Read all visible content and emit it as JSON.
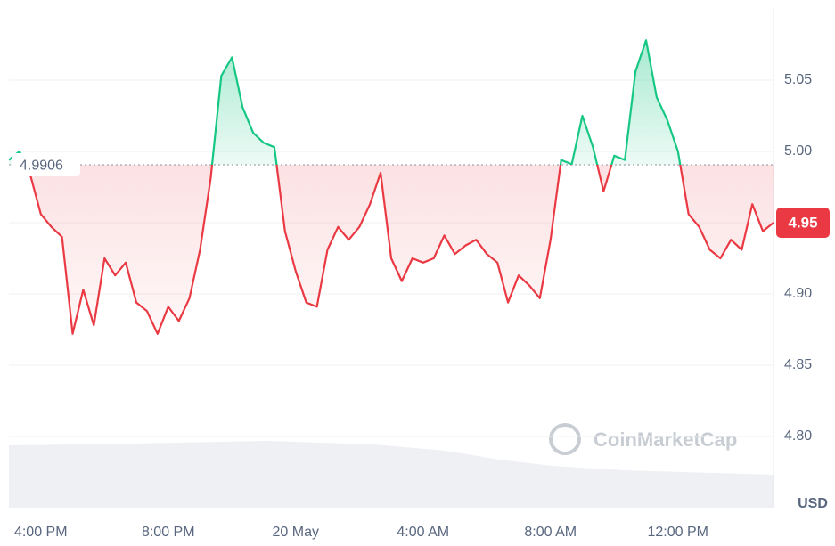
{
  "chart_data": {
    "type": "line",
    "categories": [
      null,
      null,
      null,
      "4:00 PM",
      null,
      null,
      null,
      null,
      null,
      null,
      null,
      null,
      null,
      null,
      null,
      "8:00 PM",
      null,
      null,
      null,
      null,
      null,
      null,
      null,
      null,
      null,
      null,
      null,
      "20 May",
      null,
      null,
      null,
      null,
      null,
      null,
      null,
      null,
      null,
      null,
      null,
      "4:00 AM",
      null,
      null,
      null,
      null,
      null,
      null,
      null,
      null,
      null,
      null,
      null,
      "8:00 AM",
      null,
      null,
      null,
      null,
      null,
      null,
      null,
      null,
      null,
      null,
      null,
      "12:00 PM",
      null,
      null,
      null,
      null,
      null,
      null,
      null,
      null,
      null
    ],
    "values": [
      4.994,
      5.0,
      4.984,
      4.956,
      4.947,
      4.94,
      4.872,
      4.903,
      4.878,
      4.925,
      4.913,
      4.922,
      4.894,
      4.888,
      4.872,
      4.891,
      4.881,
      4.897,
      4.931,
      4.981,
      5.053,
      5.066,
      5.031,
      5.013,
      5.006,
      5.003,
      4.944,
      4.916,
      4.894,
      4.891,
      4.931,
      4.947,
      4.938,
      4.947,
      4.963,
      4.985,
      4.925,
      4.909,
      4.925,
      4.922,
      4.925,
      4.941,
      4.928,
      4.934,
      4.938,
      4.928,
      4.922,
      4.894,
      4.913,
      4.906,
      4.897,
      4.938,
      4.994,
      4.991,
      5.025,
      5.003,
      4.972,
      4.997,
      4.994,
      5.056,
      5.078,
      5.038,
      5.022,
      5.0,
      4.956,
      4.947,
      4.931,
      4.925,
      4.938,
      4.931,
      4.963,
      4.944,
      4.95
    ],
    "reference": 4.9906,
    "up_color": "#16c784",
    "down_color": "#ea3943",
    "ylim": [
      4.75,
      5.1
    ],
    "yticks": [
      {
        "value": 4.8,
        "label": "4.80"
      },
      {
        "value": 4.85,
        "label": "4.85"
      },
      {
        "value": 4.9,
        "label": "4.90"
      },
      {
        "value": 4.95,
        "label": "4.95"
      },
      {
        "value": 5,
        "label": "5.00"
      },
      {
        "value": 5.05,
        "label": "5.05"
      }
    ],
    "y_label": "USD",
    "watermark": "CoinMarketCap",
    "grid": true
  }
}
